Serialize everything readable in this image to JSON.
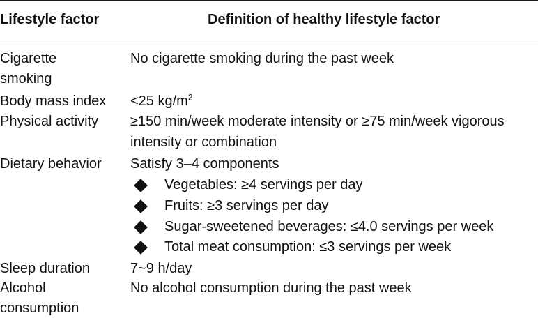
{
  "table": {
    "headers": {
      "factor": "Lifestyle factor",
      "definition": "Definition of healthy lifestyle factor"
    },
    "rows": [
      {
        "factor_lines": [
          "Cigarette",
          "smoking"
        ],
        "definition": "No cigarette smoking during the past week"
      },
      {
        "factor": "Body mass index",
        "definition_prefix": "<25 kg/m",
        "definition_sup": "2"
      },
      {
        "factor": "Physical activity",
        "definition_lines": [
          "≥150 min/week moderate intensity or ≥75 min/week vigorous",
          "intensity or combination"
        ]
      },
      {
        "factor": "Dietary behavior",
        "definition": "Satisfy 3–4 components",
        "bullets": [
          "Vegetables: ≥4 servings per day",
          "Fruits: ≥3 servings per day",
          "Sugar-sweetened beverages: ≤4.0 servings per week",
          "Total meat consumption: ≤3 servings per week"
        ]
      },
      {
        "factor": "Sleep duration",
        "definition": "7~9 h/day"
      },
      {
        "factor_lines": [
          "Alcohol",
          "consumption"
        ],
        "definition": "No alcohol consumption during the past week"
      }
    ]
  }
}
